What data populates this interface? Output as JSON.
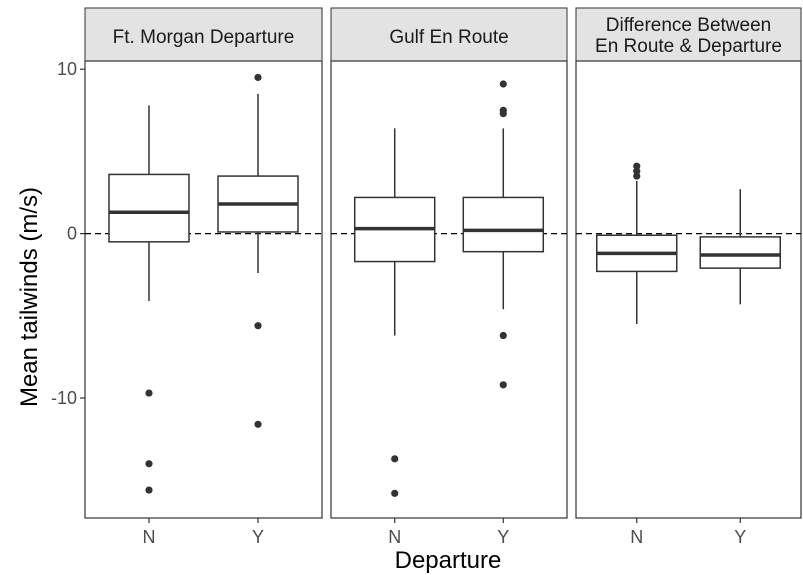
{
  "chart_data": {
    "type": "boxplot",
    "ylabel": "Mean tailwinds (m/s)",
    "xlabel": "Departure",
    "ylim": [
      -17.3,
      10.5
    ],
    "yticks": [
      -10,
      0,
      10
    ],
    "yticklabels": [
      "-10",
      "0",
      "10"
    ],
    "reference_line": {
      "y": 0,
      "style": "dashed"
    },
    "categories": [
      "N",
      "Y"
    ],
    "panels": [
      {
        "title": "Ft. Morgan Departure",
        "boxes": [
          {
            "category": "N",
            "whisker_low": -4.1,
            "q1": -0.5,
            "median": 1.3,
            "q3": 3.6,
            "whisker_high": 7.8,
            "outliers": [
              -9.7,
              -14.0,
              -15.6
            ]
          },
          {
            "category": "Y",
            "whisker_low": -2.4,
            "q1": 0.1,
            "median": 1.8,
            "q3": 3.5,
            "whisker_high": 8.5,
            "outliers": [
              9.5,
              -5.6,
              -11.6
            ]
          }
        ]
      },
      {
        "title": "Gulf En Route",
        "boxes": [
          {
            "category": "N",
            "whisker_low": -6.2,
            "q1": -1.7,
            "median": 0.3,
            "q3": 2.2,
            "whisker_high": 6.4,
            "outliers": [
              -13.7,
              -15.8
            ]
          },
          {
            "category": "Y",
            "whisker_low": -4.6,
            "q1": -1.1,
            "median": 0.2,
            "q3": 2.2,
            "whisker_high": 6.4,
            "outliers": [
              9.1,
              7.5,
              7.3,
              -6.2,
              -9.2
            ]
          }
        ]
      },
      {
        "title": "Difference Between\nEn Route & Departure",
        "title_lines": [
          "Difference Between",
          "En Route & Departure"
        ],
        "boxes": [
          {
            "category": "N",
            "whisker_low": -5.5,
            "q1": -2.3,
            "median": -1.2,
            "q3": -0.1,
            "whisker_high": 3.2,
            "outliers": [
              4.1,
              3.8,
              3.5
            ]
          },
          {
            "category": "Y",
            "whisker_low": -4.3,
            "q1": -2.1,
            "median": -1.3,
            "q3": -0.2,
            "whisker_high": 2.7,
            "outliers": []
          }
        ]
      }
    ]
  }
}
